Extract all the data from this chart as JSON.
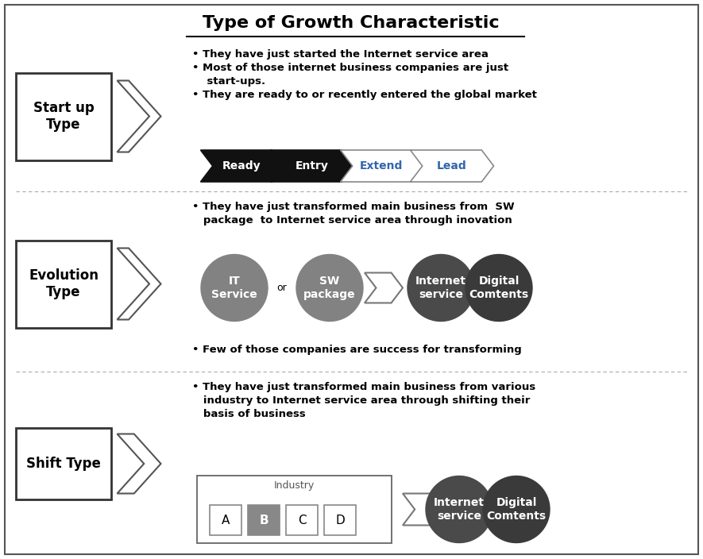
{
  "title": "Type of Growth Characteristic",
  "sections": [
    {
      "label": "Start up\nType",
      "bullet1": "They have just started the Internet service area",
      "bullet2": "Most of those internet business companies are just\n    start-ups.",
      "bullet3": "They are ready to or recently entered the global market",
      "arrows": [
        {
          "text": "Ready",
          "filled": true
        },
        {
          "text": "Entry",
          "filled": true
        },
        {
          "text": "Extend",
          "filled": false
        },
        {
          "text": "Lead",
          "filled": false
        }
      ]
    },
    {
      "label": "Evolution\nType",
      "bullet_top1": "They have just transformed main business from  SW",
      "bullet_top2": "   package  to Internet service area through inovation",
      "bullet_bot": "Few of those companies are success for transforming",
      "circles_left": [
        {
          "text": "IT\nService",
          "color": "#828282"
        },
        {
          "text": "SW\npackage",
          "color": "#828282"
        }
      ],
      "circles_right": [
        {
          "text": "Internet\nservice",
          "color": "#4a4a4a"
        },
        {
          "text": "Digital\nComtents",
          "color": "#3a3a3a"
        }
      ]
    },
    {
      "label": "Shift Type",
      "bullet1": "They have just transformed main business from various",
      "bullet2": "   industry to Internet service area through shifting their",
      "bullet3": "   basis of business",
      "industry_label": "Industry",
      "industry_items": [
        "A",
        "B",
        "C",
        "D"
      ],
      "industry_highlight": 1,
      "circles_right": [
        {
          "text": "Internet\nservice",
          "color": "#4a4a4a"
        },
        {
          "text": "Digital\nComtents",
          "color": "#3a3a3a"
        }
      ]
    }
  ]
}
